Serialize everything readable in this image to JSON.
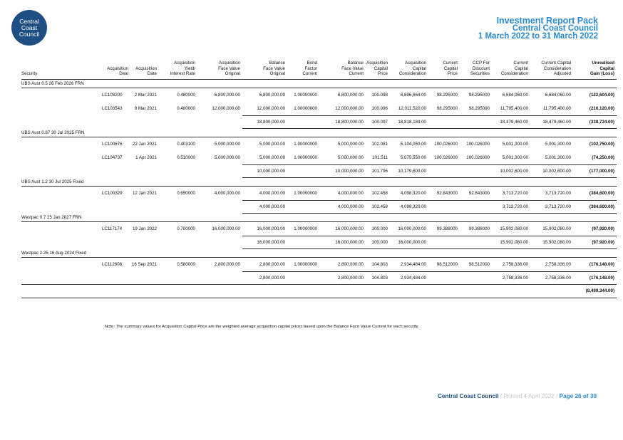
{
  "logo": {
    "line1": "Central",
    "line2": "Coast",
    "line3": "Council"
  },
  "header": {
    "title": "Investment Report Pack",
    "org": "Central Coast Council",
    "period": "1 March 2022 to 31 March 2022"
  },
  "columns": [
    "Security",
    "Acquisition Deal",
    "Acquisition Date",
    "Acquisition Yield/ Interest Rate",
    "Acquisition Face Value Original",
    "Balance Face Value Original",
    "Bond Factor Current",
    "Balance Face Value Current",
    "Acquisition Capital Price",
    "Acquisition Capital Consideration",
    "Current Capital Price",
    "CCP For Discount Securities",
    "Current Capital Consideration",
    "Current Capital Consideration Adjusted",
    "Unrealised Capital Gain (Loss)"
  ],
  "header_lines": [
    [
      "",
      "",
      "",
      "Security"
    ],
    [
      "",
      "",
      "Acquisition",
      "Deal"
    ],
    [
      "",
      "",
      "Acquisition",
      "Date"
    ],
    [
      "",
      "Acquisition",
      "Yield/",
      "Interest Rate"
    ],
    [
      "",
      "Acquisition",
      "Face Value",
      "Original"
    ],
    [
      "",
      "Balance",
      "Face Value",
      "Original"
    ],
    [
      "",
      "Bond",
      "Factor",
      "Current"
    ],
    [
      "",
      "Balance",
      "Face Value",
      "Current"
    ],
    [
      "",
      "Acquisition",
      "Capital",
      "Price"
    ],
    [
      "",
      "Acquisition",
      "Capital",
      "Consideration"
    ],
    [
      "",
      "Current",
      "Capital",
      "Price"
    ],
    [
      "",
      "CCP For",
      "Discount",
      "Securities"
    ],
    [
      "",
      "Current",
      "Capital",
      "Consideration"
    ],
    [
      "",
      "Current Capital",
      "Consideration",
      "Adjusted"
    ],
    [
      "",
      "Unrealised",
      "Capital",
      "Gain (Loss)"
    ]
  ],
  "sections": [
    {
      "name": "UBS Aust 0.5 26 Feb 2026 FRN",
      "rows": [
        [
          "LC103200",
          "2 Mar 2021",
          "0.480000",
          "6,800,000.00",
          "6,800,000.00",
          "1.00000000",
          "6,800,000.00",
          "100.098",
          "6,806,664.00",
          "98.295000",
          "98.295000",
          "6,684,060.00",
          "6,684,060.00",
          "(122,604.00)"
        ],
        [
          "LC103543",
          "9 Mar 2021",
          "0.480000",
          "12,000,000.00",
          "12,000,000.00",
          "1.00000000",
          "12,000,000.00",
          "100.096",
          "12,011,520.00",
          "98.295000",
          "98.295000",
          "11,795,400.00",
          "11,795,400.00",
          "(216,120.00)"
        ]
      ],
      "total": {
        "balance_original": "18,800,000.00",
        "balance_current": "18,800,000.00",
        "acq_price": "100.097",
        "acq_consideration": "18,818,184.00",
        "cur_consideration": "18,479,460.00",
        "cur_adjusted": "18,479,460.00",
        "gain": "(338,724.00)"
      }
    },
    {
      "name": "UBS Aust 0.87 30 Jul 2025 FRN",
      "rows": [
        [
          "LC100676",
          "22 Jan 2021",
          "0.403100",
          "5,000,000.00",
          "5,000,000.00",
          "1.00000000",
          "5,000,000.00",
          "102.081",
          "5,104,050.00",
          "100.026000",
          "100.026000",
          "5,001,300.00",
          "5,001,300.00",
          "(102,750.00)"
        ],
        [
          "LC104737",
          "1 Apr 2021",
          "0.510000",
          "5,000,000.00",
          "5,000,000.00",
          "1.00000000",
          "5,000,000.00",
          "101.511",
          "5,075,550.00",
          "100.026000",
          "100.026000",
          "5,001,300.00",
          "5,001,300.00",
          "(74,250.00)"
        ]
      ],
      "total": {
        "balance_original": "10,000,000.00",
        "balance_current": "10,000,000.00",
        "acq_price": "101.796",
        "acq_consideration": "10,179,600.00",
        "cur_consideration": "10,002,600.00",
        "cur_adjusted": "10,002,600.00",
        "gain": "(177,000.00)"
      }
    },
    {
      "name": "UBS Aust 1.2 30 Jul 2025 Fixed",
      "rows": [
        [
          "LC100329",
          "12 Jan 2021",
          "0.650000",
          "4,000,000.00",
          "4,000,000.00",
          "1.00000000",
          "4,000,000.00",
          "102.458",
          "4,098,320.00",
          "92.843000",
          "92.843000",
          "3,713,720.00",
          "3,713,720.00",
          "(384,600.00)"
        ]
      ],
      "total": {
        "balance_original": "4,000,000.00",
        "balance_current": "4,000,000.00",
        "acq_price": "102.458",
        "acq_consideration": "4,098,320.00",
        "cur_consideration": "3,713,720.00",
        "cur_adjusted": "3,713,720.00",
        "gain": "(384,600.00)"
      }
    },
    {
      "name": "Westpac 0.7 25 Jan 2027 FRN",
      "rows": [
        [
          "LC117174",
          "19 Jan 2022",
          "0.700000",
          "16,000,000.00",
          "16,000,000.00",
          "1.00000000",
          "16,000,000.00",
          "100.000",
          "16,000,000.00",
          "99.388000",
          "99.388000",
          "15,902,080.00",
          "15,902,080.00",
          "(97,920.00)"
        ]
      ],
      "total": {
        "balance_original": "16,000,000.00",
        "balance_current": "16,000,000.00",
        "acq_price": "100.000",
        "acq_consideration": "16,000,000.00",
        "cur_consideration": "15,902,080.00",
        "cur_adjusted": "15,902,080.00",
        "gain": "(97,920.00)"
      }
    },
    {
      "name": "Westpac 2.25 16 Aug 2024 Fixed",
      "rows": [
        [
          "LC112608",
          "16 Sep 2021",
          "0.580000",
          "2,800,000.00",
          "2,800,000.00",
          "1.00000000",
          "2,800,000.00",
          "104.803",
          "2,934,484.00",
          "98.512000",
          "98.512000",
          "2,758,336.00",
          "2,758,336.00",
          "(176,148.00)"
        ]
      ],
      "total": {
        "balance_original": "2,800,000.00",
        "balance_current": "2,800,000.00",
        "acq_price": "104.803",
        "acq_consideration": "2,934,484.00",
        "cur_consideration": "2,758,336.00",
        "cur_adjusted": "2,758,336.00",
        "gain": "(176,148.00)"
      }
    }
  ],
  "grand_total": "(8,499,344.00)",
  "note": "Note: The summary values for Acquisition Capital Price are the weighted average acquisition capital prices based upon the Balance Face Value Current for each security.",
  "footer": {
    "org": "Central Coast Council",
    "sep": "/",
    "printed": "Printed 4 April 2022",
    "sep2": "/",
    "page": "Page 26 of 30"
  }
}
